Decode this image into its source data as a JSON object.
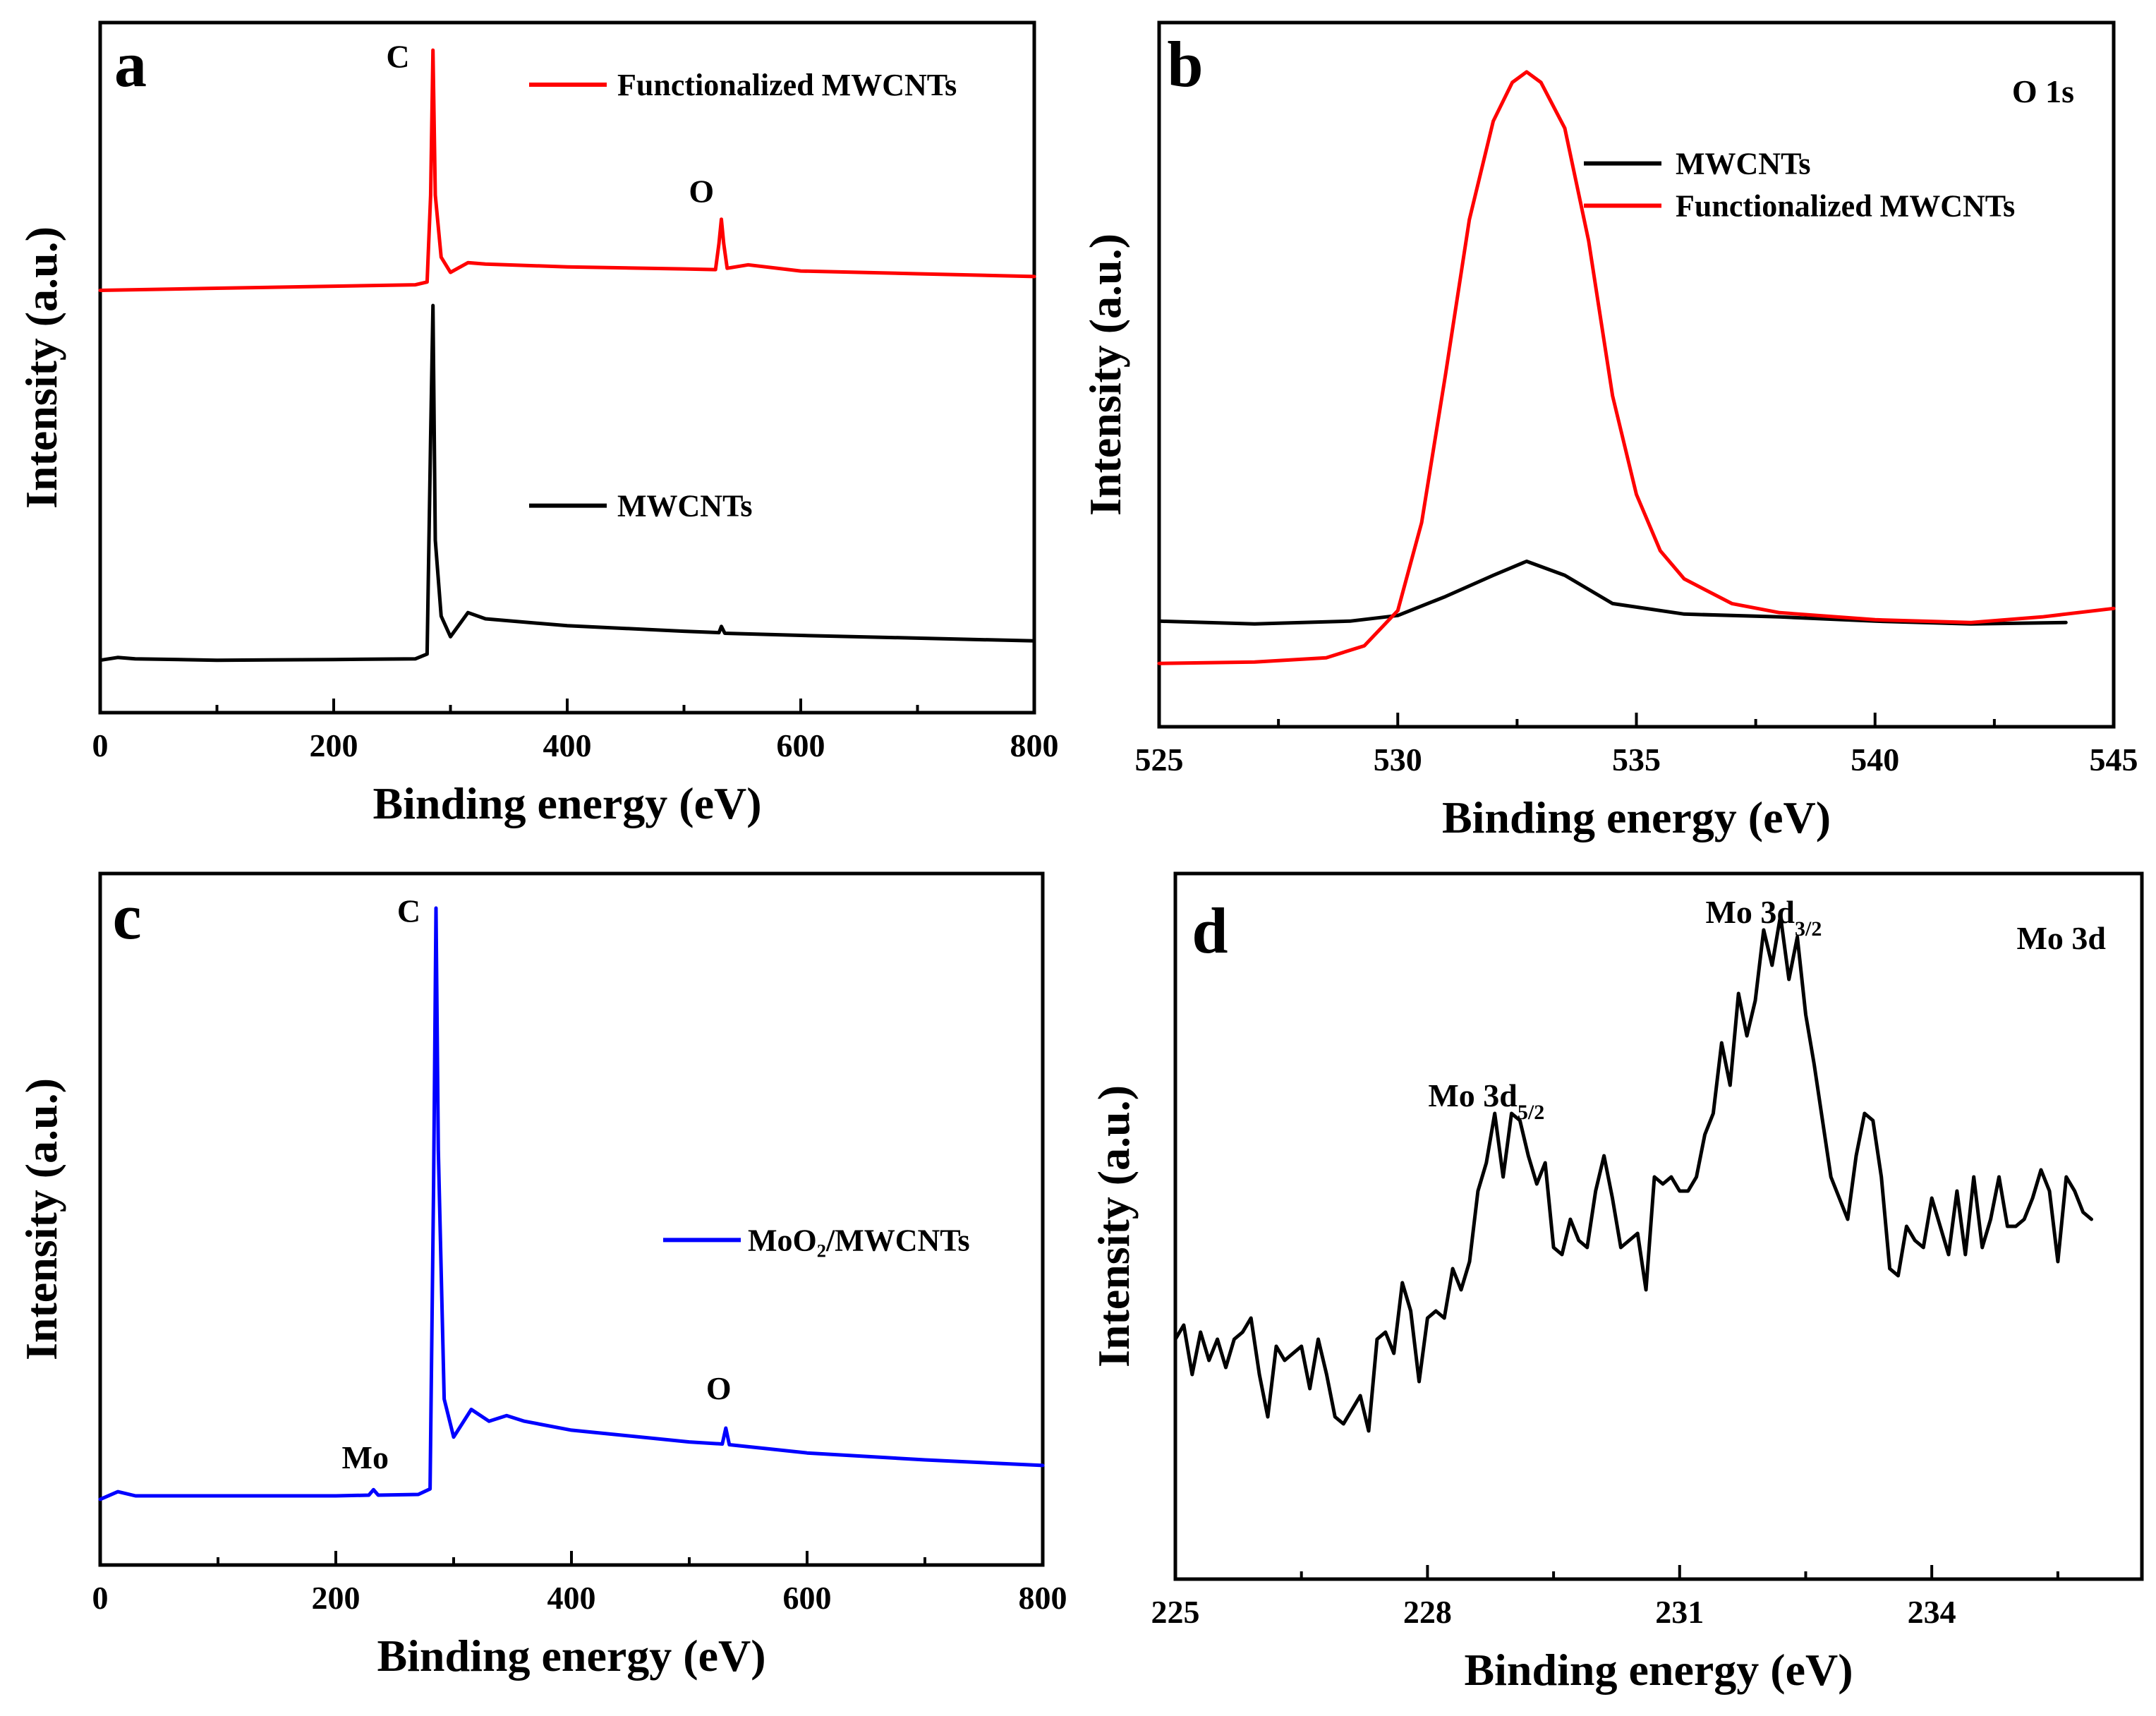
{
  "chart_data": [
    {
      "panel": "a",
      "type": "line",
      "title": "",
      "xlabel": "Binding energy (eV)",
      "ylabel": "Intensity (a.u.)",
      "xlim": [
        0,
        800
      ],
      "ylim": [
        0,
        100
      ],
      "xticks": [
        0,
        200,
        400,
        600,
        800
      ],
      "xtick_labels": [
        "0",
        "200",
        "400",
        "600",
        "800"
      ],
      "show_yticks": false,
      "legend_position": "top-right",
      "annotations": [
        {
          "text": "C",
          "x": 255,
          "y": 93.5,
          "color": "#000000"
        },
        {
          "text": "O",
          "x": 515,
          "y": 74,
          "color": "#000000"
        }
      ],
      "series": [
        {
          "name": "Functionalized MWCNTs",
          "color": "#ff0000",
          "legend_y": 91,
          "points": [
            [
              0,
              61.2
            ],
            [
              100,
              61.5
            ],
            [
              200,
              61.8
            ],
            [
              270,
              62.0
            ],
            [
              280,
              62.4
            ],
            [
              283,
              75
            ],
            [
              285,
              96
            ],
            [
              287,
              75
            ],
            [
              292,
              66
            ],
            [
              300,
              63.8
            ],
            [
              315,
              65.2
            ],
            [
              330,
              65.0
            ],
            [
              400,
              64.6
            ],
            [
              500,
              64.3
            ],
            [
              527,
              64.2
            ],
            [
              530,
              68
            ],
            [
              532,
              71.5
            ],
            [
              534,
              68
            ],
            [
              537,
              64.4
            ],
            [
              555,
              64.9
            ],
            [
              600,
              64.0
            ],
            [
              700,
              63.6
            ],
            [
              800,
              63.2
            ]
          ]
        },
        {
          "name": "MWCNTs",
          "color": "#000000",
          "legend_y": 30,
          "points": [
            [
              0,
              7.6
            ],
            [
              15,
              8.0
            ],
            [
              30,
              7.8
            ],
            [
              100,
              7.6
            ],
            [
              200,
              7.7
            ],
            [
              270,
              7.8
            ],
            [
              280,
              8.5
            ],
            [
              283,
              40
            ],
            [
              285,
              59
            ],
            [
              287,
              25
            ],
            [
              292,
              14
            ],
            [
              300,
              11.0
            ],
            [
              315,
              14.5
            ],
            [
              330,
              13.6
            ],
            [
              400,
              12.6
            ],
            [
              500,
              11.8
            ],
            [
              530,
              11.6
            ],
            [
              532,
              12.5
            ],
            [
              535,
              11.5
            ],
            [
              600,
              11.2
            ],
            [
              700,
              10.8
            ],
            [
              800,
              10.4
            ]
          ]
        }
      ]
    },
    {
      "panel": "b",
      "type": "line",
      "title": "O 1s",
      "xlabel": "Binding energy (eV)",
      "ylabel": "Intensity (a.u.)",
      "xlim": [
        525,
        545
      ],
      "ylim": [
        0,
        100
      ],
      "xticks": [
        525,
        530,
        535,
        540,
        545
      ],
      "xtick_labels": [
        "525",
        "530",
        "535",
        "540",
        "545"
      ],
      "show_yticks": false,
      "legend_position": "top-center",
      "annotations": [],
      "series": [
        {
          "name": "MWCNTs",
          "color": "#000000",
          "legend_y": 80,
          "points": [
            [
              525,
              15.0
            ],
            [
              527,
              14.6
            ],
            [
              529,
              15.0
            ],
            [
              530,
              15.8
            ],
            [
              531,
              18.5
            ],
            [
              532,
              21.5
            ],
            [
              532.7,
              23.5
            ],
            [
              533.5,
              21.5
            ],
            [
              534.5,
              17.5
            ],
            [
              536,
              16.0
            ],
            [
              538,
              15.6
            ],
            [
              540,
              15.0
            ],
            [
              542,
              14.6
            ],
            [
              544,
              14.8
            ]
          ]
        },
        {
          "name": "Functionalized MWCNTs",
          "color": "#ff0000",
          "legend_y": 74,
          "points": [
            [
              525,
              9.0
            ],
            [
              527,
              9.2
            ],
            [
              528.5,
              9.8
            ],
            [
              529.3,
              11.5
            ],
            [
              530,
              16.5
            ],
            [
              530.5,
              29
            ],
            [
              531,
              50
            ],
            [
              531.5,
              72
            ],
            [
              532,
              86
            ],
            [
              532.4,
              91.5
            ],
            [
              532.7,
              93
            ],
            [
              533,
              91.5
            ],
            [
              533.5,
              85
            ],
            [
              534,
              69
            ],
            [
              534.5,
              47
            ],
            [
              535,
              33
            ],
            [
              535.5,
              25
            ],
            [
              536,
              21
            ],
            [
              537,
              17.5
            ],
            [
              538,
              16.2
            ],
            [
              540,
              15.2
            ],
            [
              542,
              14.8
            ],
            [
              543.5,
              15.6
            ],
            [
              545,
              16.8
            ]
          ]
        }
      ]
    },
    {
      "panel": "c",
      "type": "line",
      "title": "",
      "xlabel": "Binding energy (eV)",
      "ylabel": "Intensity (a.u.)",
      "xlim": [
        0,
        800
      ],
      "ylim": [
        0,
        100
      ],
      "xticks": [
        0,
        200,
        400,
        600,
        800
      ],
      "xtick_labels": [
        "0",
        "200",
        "400",
        "600",
        "800"
      ],
      "show_yticks": false,
      "legend_position": "center-right",
      "annotations": [
        {
          "text": "C",
          "x": 262,
          "y": 93,
          "color": "#000000"
        },
        {
          "text": "O",
          "x": 525,
          "y": 24,
          "color": "#000000"
        },
        {
          "text": "Mo",
          "x": 225,
          "y": 14,
          "color": "#000000"
        }
      ],
      "series": [
        {
          "name": "MoO2/MWCNTs",
          "legend_label": "MoO₂/MWCNTs",
          "color": "#0000ff",
          "legend_y": 47,
          "points": [
            [
              0,
              9.5
            ],
            [
              15,
              10.6
            ],
            [
              30,
              10.0
            ],
            [
              100,
              10.0
            ],
            [
              200,
              10.0
            ],
            [
              228,
              10.1
            ],
            [
              232,
              10.9
            ],
            [
              236,
              10.1
            ],
            [
              270,
              10.2
            ],
            [
              280,
              11.0
            ],
            [
              283,
              55
            ],
            [
              285,
              95
            ],
            [
              287,
              60
            ],
            [
              292,
              24
            ],
            [
              300,
              18.5
            ],
            [
              315,
              22.5
            ],
            [
              330,
              20.8
            ],
            [
              345,
              21.6
            ],
            [
              360,
              20.8
            ],
            [
              400,
              19.5
            ],
            [
              500,
              17.8
            ],
            [
              528,
              17.5
            ],
            [
              531,
              19.8
            ],
            [
              534,
              17.4
            ],
            [
              600,
              16.2
            ],
            [
              700,
              15.2
            ],
            [
              800,
              14.4
            ]
          ]
        }
      ]
    },
    {
      "panel": "d",
      "type": "line",
      "title": "Mo 3d",
      "title_color": "#0000ff",
      "xlabel": "Binding energy (eV)",
      "ylabel": "Intensity (a.u.)",
      "xlim": [
        225,
        236.5
      ],
      "ylim": [
        0,
        100
      ],
      "xticks": [
        225,
        228,
        231,
        234
      ],
      "xtick_labels": [
        "225",
        "228",
        "231",
        "234"
      ],
      "show_yticks": false,
      "annotations": [
        {
          "text": "Mo 3d",
          "sub": "5/2",
          "x": 228.7,
          "y": 67
        },
        {
          "text": "Mo 3d",
          "sub": "3/2",
          "x": 232.0,
          "y": 93
        }
      ],
      "series": [
        {
          "name": "Mo 3d",
          "color": "#000000",
          "points": [
            [
              225.0,
              34
            ],
            [
              225.1,
              36
            ],
            [
              225.2,
              29
            ],
            [
              225.3,
              35
            ],
            [
              225.4,
              31
            ],
            [
              225.5,
              34
            ],
            [
              225.6,
              30
            ],
            [
              225.7,
              34
            ],
            [
              225.8,
              35
            ],
            [
              225.9,
              37
            ],
            [
              226.0,
              29
            ],
            [
              226.1,
              23
            ],
            [
              226.2,
              33
            ],
            [
              226.3,
              31
            ],
            [
              226.4,
              32
            ],
            [
              226.5,
              33
            ],
            [
              226.6,
              27
            ],
            [
              226.7,
              34
            ],
            [
              226.8,
              29
            ],
            [
              226.9,
              23
            ],
            [
              227.0,
              22
            ],
            [
              227.1,
              24
            ],
            [
              227.2,
              26
            ],
            [
              227.3,
              21
            ],
            [
              227.4,
              34
            ],
            [
              227.5,
              35
            ],
            [
              227.6,
              32
            ],
            [
              227.7,
              42
            ],
            [
              227.8,
              38
            ],
            [
              227.9,
              28
            ],
            [
              228.0,
              37
            ],
            [
              228.1,
              38
            ],
            [
              228.2,
              37
            ],
            [
              228.3,
              44
            ],
            [
              228.4,
              41
            ],
            [
              228.5,
              45
            ],
            [
              228.6,
              55
            ],
            [
              228.7,
              59
            ],
            [
              228.8,
              66
            ],
            [
              228.9,
              57
            ],
            [
              229.0,
              66
            ],
            [
              229.1,
              65
            ],
            [
              229.2,
              60
            ],
            [
              229.3,
              56
            ],
            [
              229.4,
              59
            ],
            [
              229.5,
              47
            ],
            [
              229.6,
              46
            ],
            [
              229.7,
              51
            ],
            [
              229.8,
              48
            ],
            [
              229.9,
              47
            ],
            [
              230.0,
              55
            ],
            [
              230.1,
              60
            ],
            [
              230.2,
              54
            ],
            [
              230.3,
              47
            ],
            [
              230.4,
              48
            ],
            [
              230.5,
              49
            ],
            [
              230.6,
              41
            ],
            [
              230.7,
              57
            ],
            [
              230.8,
              56
            ],
            [
              230.9,
              57
            ],
            [
              231.0,
              55
            ],
            [
              231.1,
              55
            ],
            [
              231.2,
              57
            ],
            [
              231.3,
              63
            ],
            [
              231.4,
              66
            ],
            [
              231.5,
              76
            ],
            [
              231.6,
              70
            ],
            [
              231.7,
              83
            ],
            [
              231.8,
              77
            ],
            [
              231.9,
              82
            ],
            [
              232.0,
              92
            ],
            [
              232.1,
              87
            ],
            [
              232.2,
              94
            ],
            [
              232.3,
              85
            ],
            [
              232.4,
              91
            ],
            [
              232.5,
              80
            ],
            [
              232.6,
              73
            ],
            [
              232.7,
              65
            ],
            [
              232.8,
              57
            ],
            [
              232.9,
              54
            ],
            [
              233.0,
              51
            ],
            [
              233.1,
              60
            ],
            [
              233.2,
              66
            ],
            [
              233.3,
              65
            ],
            [
              233.4,
              57
            ],
            [
              233.5,
              44
            ],
            [
              233.6,
              43
            ],
            [
              233.7,
              50
            ],
            [
              233.8,
              48
            ],
            [
              233.9,
              47
            ],
            [
              234.0,
              54
            ],
            [
              234.1,
              50
            ],
            [
              234.2,
              46
            ],
            [
              234.3,
              55
            ],
            [
              234.4,
              46
            ],
            [
              234.5,
              57
            ],
            [
              234.6,
              47
            ],
            [
              234.7,
              51
            ],
            [
              234.8,
              57
            ],
            [
              234.9,
              50
            ],
            [
              235.0,
              50
            ],
            [
              235.1,
              51
            ],
            [
              235.2,
              54
            ],
            [
              235.3,
              58
            ],
            [
              235.4,
              55
            ],
            [
              235.5,
              45
            ],
            [
              235.6,
              57
            ],
            [
              235.7,
              55
            ],
            [
              235.8,
              52
            ],
            [
              235.9,
              51
            ]
          ]
        }
      ]
    }
  ]
}
